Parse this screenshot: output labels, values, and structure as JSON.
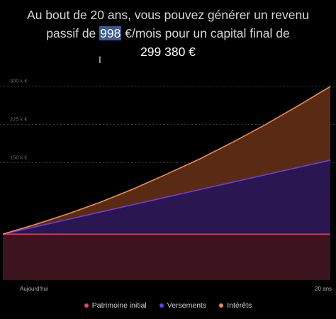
{
  "headline": {
    "line1": "Au bout de 20 ans, vous pouvez générer un revenu",
    "line2_prefix": "passif de ",
    "monthly_income": "998",
    "line2_unit": " €/mois",
    "line2_suffix": " pour un capital final de",
    "final_capital": "299 380 €"
  },
  "cursor": {
    "icon": "text-cursor-icon",
    "glyph": "I"
  },
  "colors": {
    "patrimoine": "#e0456a",
    "versements": "#6a3ee8",
    "interets": "#f08a55",
    "fill_patrimoine": "#3c1420",
    "fill_versements": "#2a1650",
    "fill_interets": "#5a2b14"
  },
  "chart_data": {
    "type": "area",
    "stacked": true,
    "x": [
      0,
      2,
      4,
      6,
      8,
      10,
      12,
      14,
      16,
      18,
      20
    ],
    "x_tick_labels": [
      {
        "x": 0,
        "label": "Aujourd'hui"
      },
      {
        "x": 20,
        "label": "20 ans"
      }
    ],
    "y_ticks": [
      {
        "value": 150000,
        "label": "150 k €"
      },
      {
        "value": 225000,
        "label": "225 k €"
      },
      {
        "value": 300000,
        "label": "300 k €"
      }
    ],
    "ylim": [
      -80000,
      330000
    ],
    "grid": true,
    "legend_position": "bottom",
    "series": [
      {
        "name": "Patrimoine initial",
        "values": [
          10000,
          10000,
          10000,
          10000,
          10000,
          10000,
          10000,
          10000,
          10000,
          10000,
          10000
        ]
      },
      {
        "name": "Versements",
        "values": [
          0,
          14500,
          29000,
          43500,
          58000,
          72500,
          87000,
          101500,
          116000,
          130500,
          145000
        ]
      },
      {
        "name": "Intérêts",
        "values": [
          0,
          4500,
          11000,
          19500,
          31000,
          45000,
          60000,
          78000,
          98000,
          120500,
          144380
        ]
      }
    ]
  }
}
